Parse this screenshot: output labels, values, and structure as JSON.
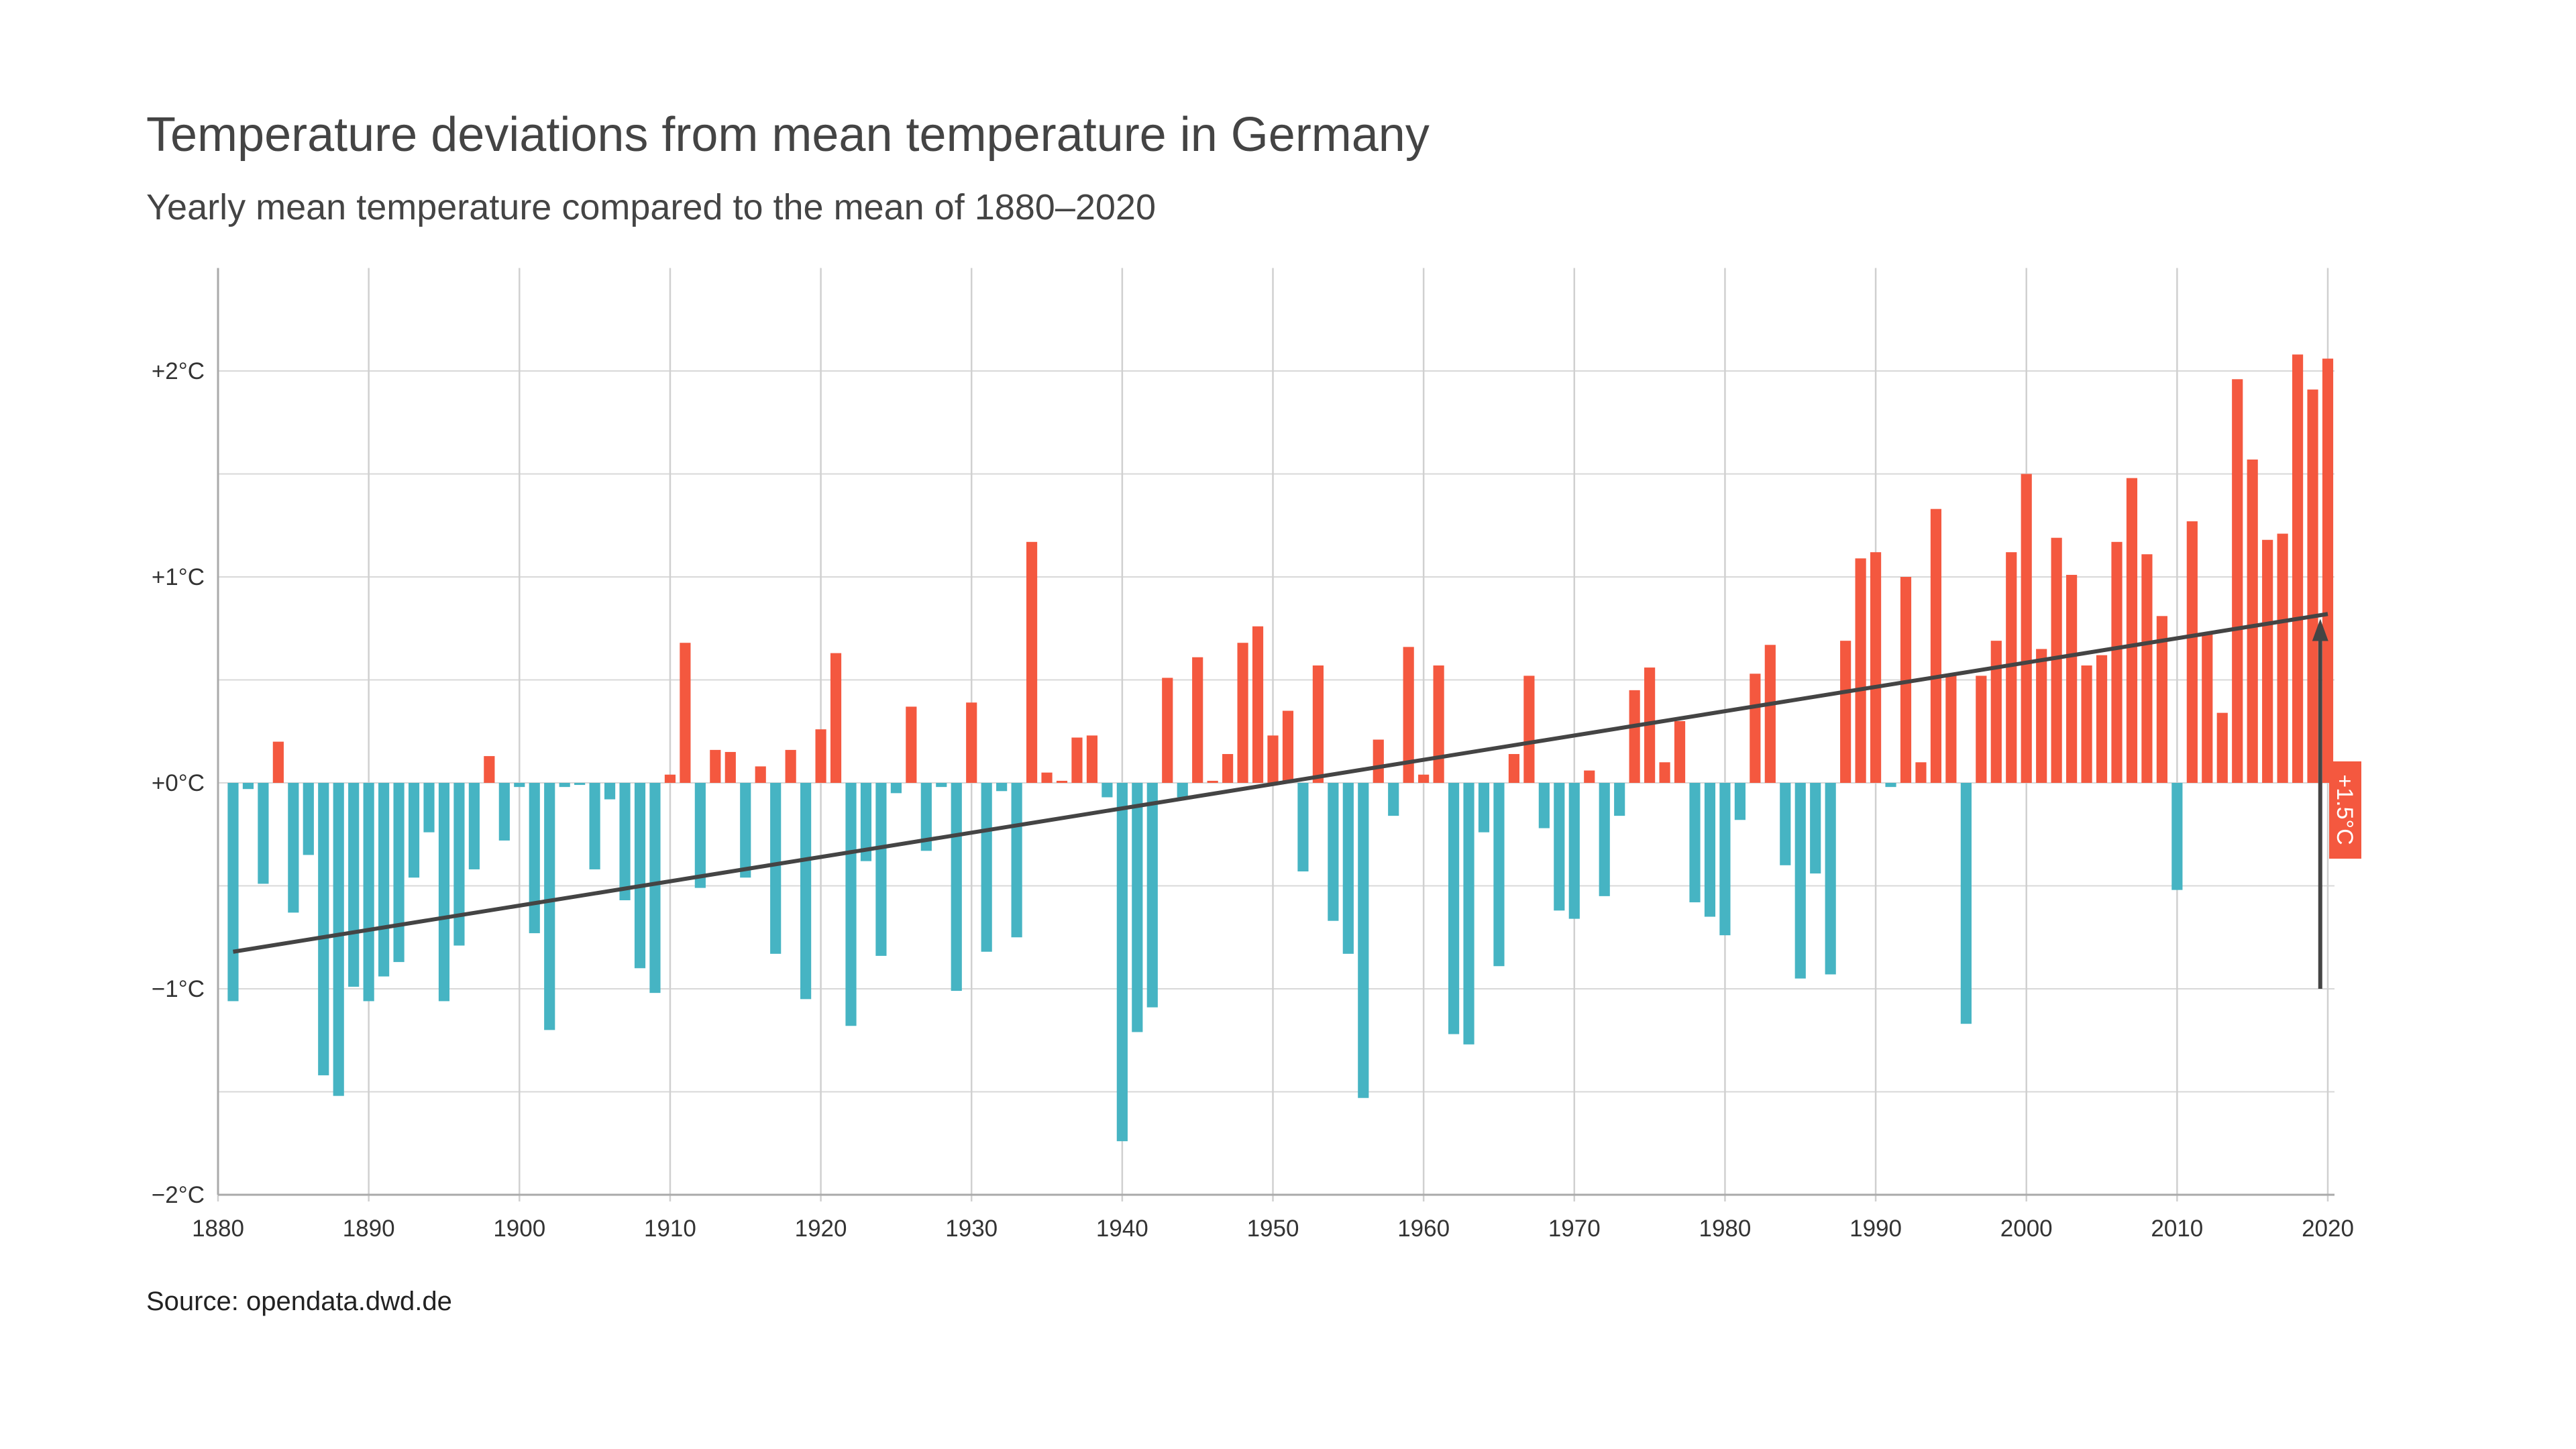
{
  "title": "Temperature deviations from mean temperature in Germany",
  "subtitle": "Yearly mean temperature compared to the mean of 1880–2020",
  "source": "Source: opendata.dwd.de",
  "chart_data": {
    "type": "bar",
    "title": "Temperature deviations from mean temperature in Germany",
    "subtitle": "Yearly mean temperature compared to the mean of 1880–2020",
    "xlabel": "",
    "ylabel": "",
    "xlim": [
      1880,
      2020
    ],
    "ylim": [
      -2,
      2.5
    ],
    "grid": true,
    "x_ticks": [
      "1880",
      "1890",
      "1900",
      "1910",
      "1920",
      "1930",
      "1940",
      "1950",
      "1960",
      "1970",
      "1980",
      "1990",
      "2000",
      "2010",
      "2020"
    ],
    "y_ticks": [
      {
        "value": 2,
        "label": "+2°C"
      },
      {
        "value": 1,
        "label": "+1°C"
      },
      {
        "value": 0,
        "label": "+0°C"
      },
      {
        "value": -1,
        "label": "−1°C"
      },
      {
        "value": -2,
        "label": "−2°C"
      }
    ],
    "colors": {
      "positive": "#f4583f",
      "negative": "#46b4c3",
      "trend": "#444444",
      "annotation": "#f4583f"
    },
    "start_year": 1881,
    "values": [
      -1.06,
      -0.03,
      -0.49,
      0.2,
      -0.63,
      -0.35,
      -1.42,
      -1.52,
      -0.99,
      -1.06,
      -0.94,
      -0.87,
      -0.46,
      -0.24,
      -1.06,
      -0.79,
      -0.42,
      0.13,
      -0.28,
      -0.02,
      -0.73,
      -1.2,
      -0.02,
      -0.01,
      -0.42,
      -0.08,
      -0.57,
      -0.9,
      -1.02,
      0.04,
      0.68,
      -0.51,
      0.16,
      0.15,
      -0.46,
      0.08,
      -0.83,
      0.16,
      -1.05,
      0.26,
      0.63,
      -1.18,
      -0.38,
      -0.84,
      -0.05,
      0.37,
      -0.33,
      -0.02,
      -1.01,
      0.39,
      -0.82,
      -0.04,
      -0.75,
      1.17,
      0.05,
      0.01,
      0.22,
      0.23,
      -0.07,
      -1.74,
      -1.21,
      -1.09,
      0.51,
      -0.07,
      0.61,
      0.01,
      0.14,
      0.68,
      0.76,
      0.23,
      0.35,
      -0.43,
      0.57,
      -0.67,
      -0.83,
      -1.53,
      0.21,
      -0.16,
      0.66,
      0.04,
      0.57,
      -1.22,
      -1.27,
      -0.24,
      -0.89,
      0.14,
      0.52,
      -0.22,
      -0.62,
      -0.66,
      0.06,
      -0.55,
      -0.16,
      0.45,
      0.56,
      0.1,
      0.3,
      -0.58,
      -0.65,
      -0.74,
      -0.18,
      0.53,
      0.67,
      -0.4,
      -0.95,
      -0.44,
      -0.93,
      0.69,
      1.09,
      1.12,
      -0.02,
      1.0,
      0.1,
      1.33,
      0.52,
      -1.17,
      0.52,
      0.69,
      1.12,
      1.5,
      0.65,
      1.19,
      1.01,
      0.57,
      0.62,
      1.17,
      1.48,
      1.11,
      0.81,
      -0.52,
      1.27,
      0.72,
      0.34,
      1.96,
      1.57,
      1.18,
      1.21,
      2.08,
      1.91,
      2.06
    ],
    "trend": {
      "from": {
        "x": 1881,
        "y": -0.82
      },
      "to": {
        "x": 2020,
        "y": 0.82
      }
    },
    "annotation": {
      "label": "+1.5°C",
      "x": 2019.5,
      "from": -1.0,
      "to": 0.78
    }
  }
}
